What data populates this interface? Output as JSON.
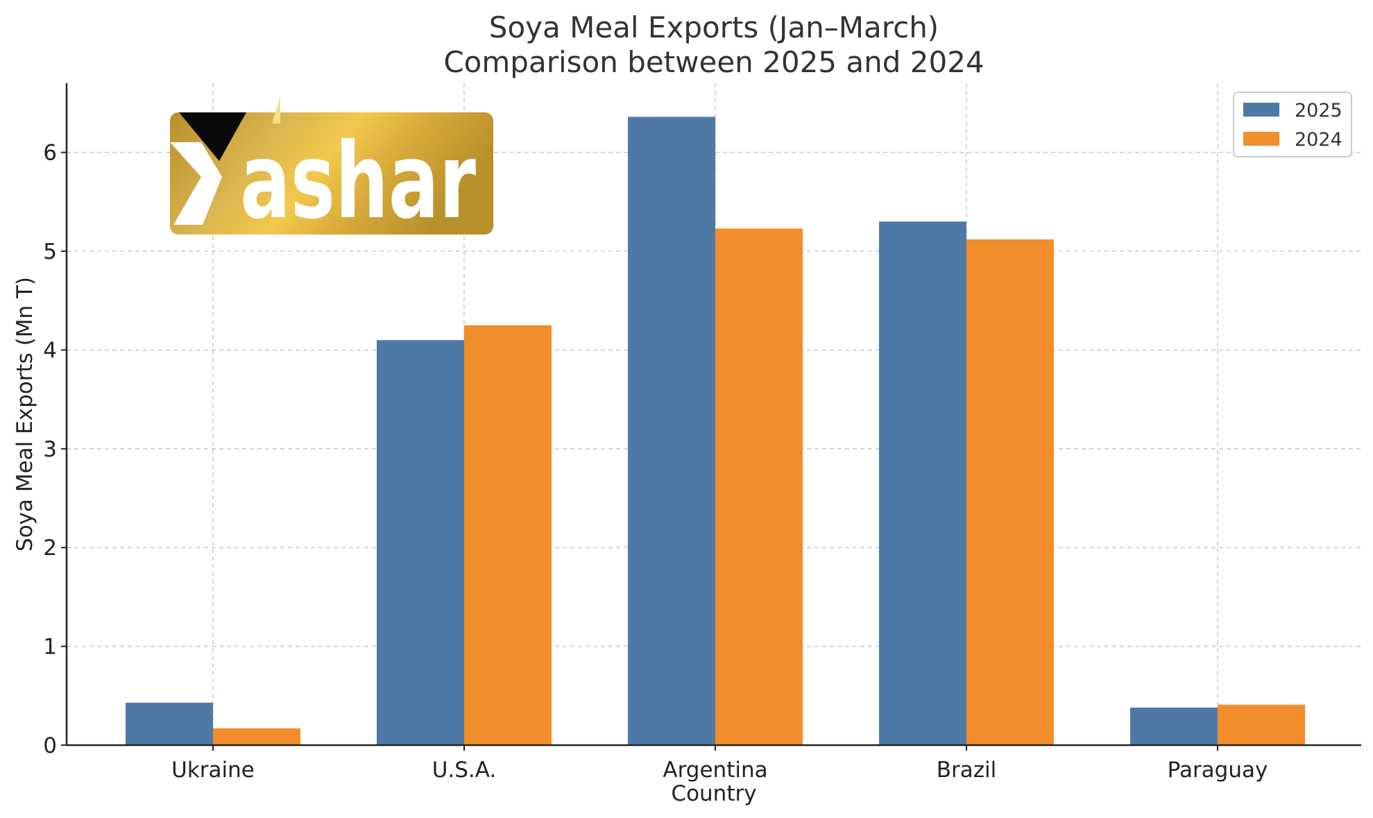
{
  "chart_data": {
    "type": "bar",
    "title": "Soya Meal Exports (Jan–March)",
    "subtitle": "Comparison between 2025 and 2024",
    "xlabel": "Country",
    "ylabel": "Soya Meal Exports (Mn T)",
    "categories": [
      "Ukraine",
      "U.S.A.",
      "Argentina",
      "Brazil",
      "Paraguay"
    ],
    "series": [
      {
        "name": "2025",
        "color": "#4e79a7",
        "values": [
          0.43,
          4.1,
          6.36,
          5.3,
          0.38
        ]
      },
      {
        "name": "2024",
        "color": "#f28e2b",
        "values": [
          0.17,
          4.25,
          5.23,
          5.12,
          0.41
        ]
      }
    ],
    "ylim": [
      0,
      6.7
    ],
    "yticks": [
      0,
      1,
      2,
      3,
      4,
      5,
      6
    ],
    "grid": true,
    "legend_position": "top-right"
  },
  "logo": {
    "text": "ashar",
    "name": "Yashar"
  }
}
